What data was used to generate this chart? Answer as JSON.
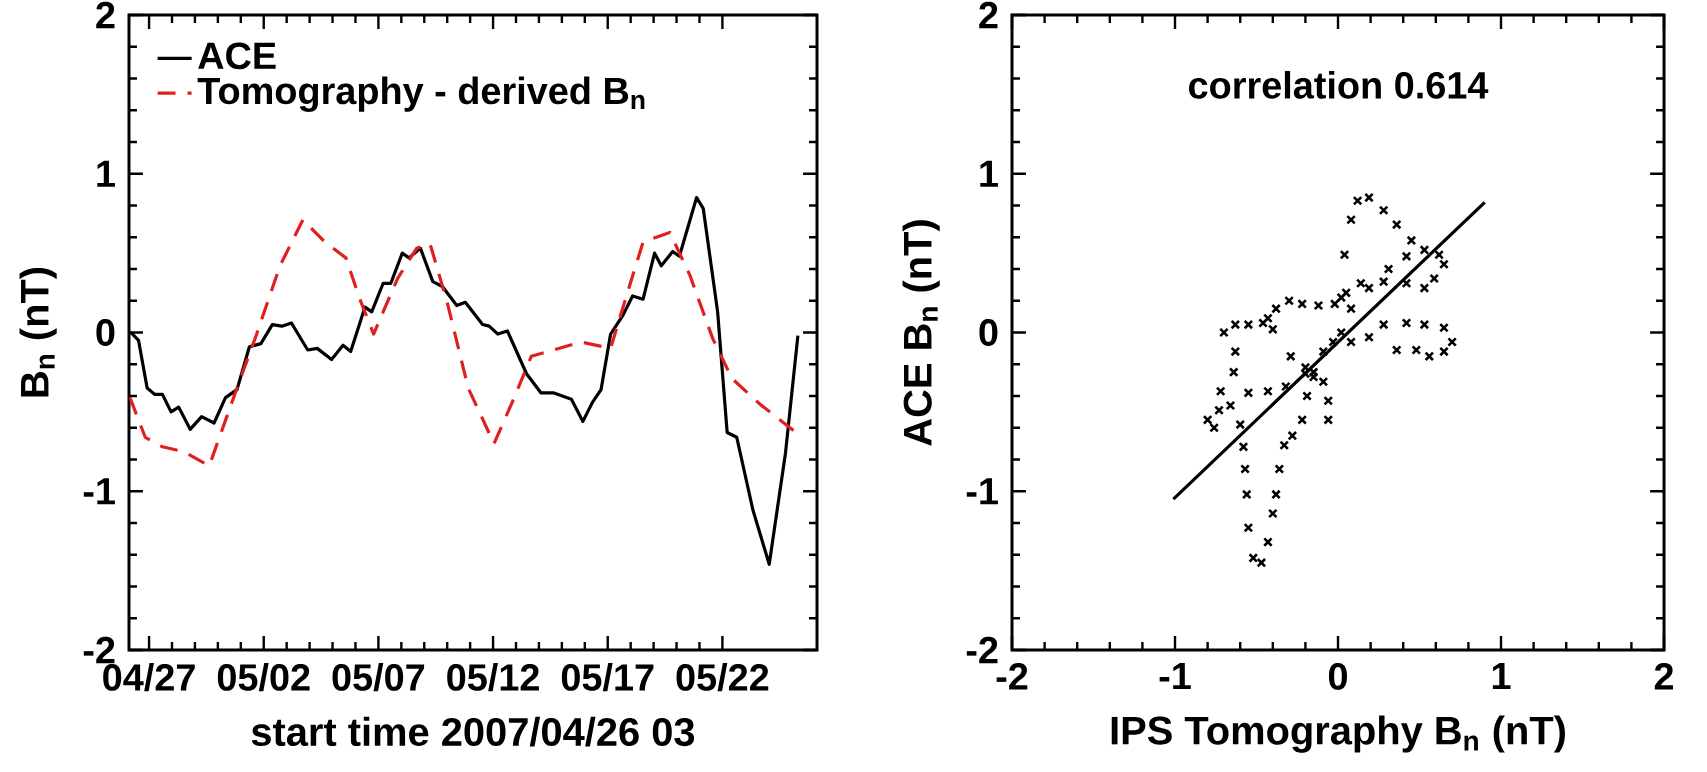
{
  "chart_data": [
    {
      "type": "line",
      "xlabel": "start time 2007/04/26 03",
      "ylabel": "B$_{n}$ (nT)",
      "xlim": [
        "2007-04-26T03:00",
        "2007-05-26T03:00"
      ],
      "xticks": [
        {
          "value": "2007-04-27",
          "label": "04/27"
        },
        {
          "value": "2007-05-02",
          "label": "05/02"
        },
        {
          "value": "2007-05-07",
          "label": "05/07"
        },
        {
          "value": "2007-05-12",
          "label": "05/12"
        },
        {
          "value": "2007-05-17",
          "label": "05/17"
        },
        {
          "value": "2007-05-22",
          "label": "05/22"
        }
      ],
      "ylim": [
        -2,
        2
      ],
      "yticks": [
        -2,
        -1,
        0,
        1,
        2
      ],
      "legend": "top left",
      "series": [
        {
          "name": "ACE",
          "color": "#000000",
          "line_style": "solid",
          "x": [
            "2007-04-26T05:00",
            "2007-04-26T13:00",
            "2007-04-26T22:00",
            "2007-04-27T06:00",
            "2007-04-27T14:00",
            "2007-04-27T23:00",
            "2007-04-28T07:00",
            "2007-04-28T19:00",
            "2007-04-29T07:00",
            "2007-04-29T20:00",
            "2007-04-30T08:00",
            "2007-04-30T20:00",
            "2007-05-01T09:00",
            "2007-05-01T21:00",
            "2007-05-02T09:00",
            "2007-05-02T19:00",
            "2007-05-03T05:00",
            "2007-05-03T22:00",
            "2007-05-04T08:00",
            "2007-05-04T23:00",
            "2007-05-05T11:00",
            "2007-05-05T19:00",
            "2007-05-06T10:00",
            "2007-05-06T17:00",
            "2007-05-07T05:00",
            "2007-05-07T13:00",
            "2007-05-08T01:00",
            "2007-05-08T08:00",
            "2007-05-08T20:00",
            "2007-05-09T09:00",
            "2007-05-09T19:00",
            "2007-05-10T10:00",
            "2007-05-10T19:00",
            "2007-05-11T13:00",
            "2007-05-11T20:00",
            "2007-05-12T05:00",
            "2007-05-12T15:00",
            "2007-05-13T11:00",
            "2007-05-14T02:00",
            "2007-05-14T15:00",
            "2007-05-15T10:00",
            "2007-05-15T22:00",
            "2007-05-16T08:00",
            "2007-05-16T17:00",
            "2007-05-17T03:00",
            "2007-05-17T16:00",
            "2007-05-18T02:00",
            "2007-05-18T13:00",
            "2007-05-19T01:00",
            "2007-05-19T08:00",
            "2007-05-19T20:00",
            "2007-05-20T03:00",
            "2007-05-20T21:00",
            "2007-05-21T04:00",
            "2007-05-21T19:00",
            "2007-05-22T05:00",
            "2007-05-22T15:00",
            "2007-05-23T08:00",
            "2007-05-24T01:00",
            "2007-05-24T18:00",
            "2007-05-25T07:00"
          ],
          "values": [
            0,
            -0.05,
            -0.35,
            -0.39,
            -0.39,
            -0.5,
            -0.47,
            -0.61,
            -0.53,
            -0.57,
            -0.41,
            -0.36,
            -0.09,
            -0.07,
            0.05,
            0.04,
            0.06,
            -0.11,
            -0.1,
            -0.17,
            -0.08,
            -0.12,
            0.16,
            0.13,
            0.31,
            0.31,
            0.5,
            0.47,
            0.53,
            0.32,
            0.29,
            0.17,
            0.19,
            0.05,
            0.04,
            -0.01,
            0.01,
            -0.26,
            -0.38,
            -0.38,
            -0.42,
            -0.56,
            -0.44,
            -0.36,
            -0.01,
            0.11,
            0.23,
            0.21,
            0.5,
            0.42,
            0.51,
            0.48,
            0.85,
            0.78,
            0.13,
            -0.63,
            -0.66,
            -1.12,
            -1.46,
            -0.76,
            -0.02
          ]
        },
        {
          "name": "Tomography - derived B$_{n}$",
          "color": "#e02020",
          "line_style": "dashed",
          "x": [
            "2007-04-26T04:00",
            "2007-04-26T20:00",
            "2007-04-27T14:00",
            "2007-04-28T12:00",
            "2007-04-29T15:00",
            "2007-04-30T20:00",
            "2007-05-01T16:00",
            "2007-05-02T17:00",
            "2007-05-03T17:00",
            "2007-05-04T16:00",
            "2007-05-05T14:00",
            "2007-05-06T04:00",
            "2007-05-06T19:00",
            "2007-05-07T20:00",
            "2007-05-08T16:00",
            "2007-05-09T06:00",
            "2007-05-10T00:00",
            "2007-05-10T22:00",
            "2007-05-12T01:00",
            "2007-05-12T20:00",
            "2007-05-13T16:00",
            "2007-05-14T15:00",
            "2007-05-15T20:00",
            "2007-05-17T03:00",
            "2007-05-17T16:00",
            "2007-05-18T13:00",
            "2007-05-19T17:00",
            "2007-05-20T14:00",
            "2007-05-21T14:00",
            "2007-05-22T10:00",
            "2007-05-23T15:00",
            "2007-05-25T07:00"
          ],
          "values": [
            -0.41,
            -0.66,
            -0.72,
            -0.75,
            -0.84,
            -0.35,
            -0.02,
            0.42,
            0.71,
            0.57,
            0.47,
            0.22,
            -0.01,
            0.34,
            0.53,
            0.56,
            0.19,
            -0.35,
            -0.7,
            -0.44,
            -0.15,
            -0.11,
            -0.06,
            -0.1,
            0.16,
            0.57,
            0.63,
            0.36,
            -0.04,
            -0.29,
            -0.45,
            -0.64
          ]
        }
      ]
    },
    {
      "type": "scatter",
      "xlabel": "IPS Tomography B$_{n}$ (nT)",
      "ylabel": "ACE B$_{n}$ (nT)",
      "xlim": [
        -2,
        2
      ],
      "xticks": [
        -2,
        -1,
        0,
        1,
        2
      ],
      "ylim": [
        -2,
        2
      ],
      "yticks": [
        -2,
        -1,
        0,
        1,
        2
      ],
      "annotations": [
        "correlation 0.614"
      ],
      "series": [
        {
          "type": "scatter",
          "color": "#000000",
          "marker": "cross",
          "x": [
            -0.8,
            -0.76,
            -0.73,
            -0.72,
            -0.7,
            -0.63,
            -0.55,
            -0.46,
            -0.4,
            -0.43,
            -0.38,
            -0.3,
            -0.22,
            -0.12,
            -0.02,
            0.05,
            0.14,
            0.28,
            0.42,
            0.53,
            -0.29,
            -0.2,
            -0.15,
            -0.09,
            -0.06,
            -0.06,
            -0.66,
            -0.55,
            -0.43,
            -0.32,
            -0.2,
            -0.64,
            -0.63,
            -0.6,
            -0.58,
            -0.57,
            -0.56,
            -0.55,
            -0.52,
            -0.47,
            -0.43,
            -0.4,
            -0.38,
            -0.36,
            -0.33,
            -0.28,
            -0.22,
            -0.19,
            -0.15,
            -0.09,
            -0.03,
            0.02,
            0.04,
            0.08,
            0.12,
            0.19,
            0.28,
            0.36,
            0.45,
            0.53,
            0.62,
            0.65,
            0.59,
            0.08,
            0.19,
            0.28,
            0.42,
            0.53,
            0.65,
            0.7,
            0.65,
            0.56,
            0.48,
            0.36,
            0.02,
            0.08,
            0.19,
            0.31,
            0.42
          ],
          "values": [
            -0.55,
            -0.6,
            -0.49,
            -0.37,
            0.0,
            0.05,
            0.05,
            0.06,
            0.02,
            0.09,
            0.15,
            0.2,
            0.18,
            0.17,
            0.18,
            0.25,
            0.31,
            0.32,
            0.31,
            0.28,
            -0.15,
            -0.22,
            -0.25,
            -0.31,
            -0.43,
            -0.55,
            -0.46,
            -0.38,
            -0.37,
            -0.34,
            -0.26,
            -0.25,
            -0.12,
            -0.58,
            -0.72,
            -0.86,
            -1.02,
            -1.23,
            -1.42,
            -1.45,
            -1.32,
            -1.14,
            -1.02,
            -0.86,
            -0.71,
            -0.65,
            -0.55,
            -0.4,
            -0.28,
            -0.12,
            -0.06,
            0.22,
            0.49,
            0.71,
            0.83,
            0.85,
            0.77,
            0.68,
            0.58,
            0.52,
            0.49,
            0.43,
            0.34,
            -0.06,
            -0.03,
            0.05,
            0.06,
            0.05,
            0.03,
            -0.06,
            -0.12,
            -0.15,
            -0.11,
            -0.11,
            0.0,
            0.15,
            0.28,
            0.4,
            0.48
          ]
        },
        {
          "type": "line",
          "color": "#000000",
          "x": [
            -1.01,
            0.9
          ],
          "values": [
            -1.05,
            0.82
          ]
        }
      ]
    }
  ]
}
